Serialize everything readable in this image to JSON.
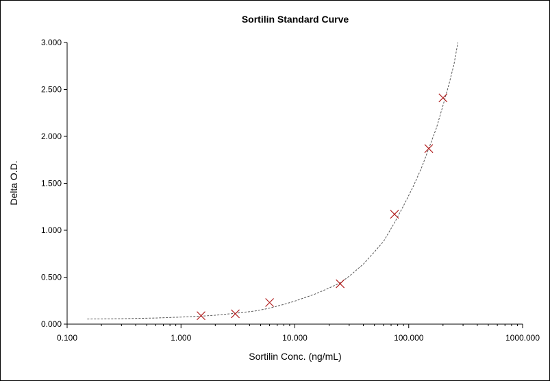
{
  "chart_data": {
    "type": "scatter",
    "title": "Sortilin Standard Curve",
    "xlabel": "Sortilin Conc. (ng/mL)",
    "ylabel": "Delta O.D.",
    "x_scale": "log",
    "xlim": [
      0.1,
      1000
    ],
    "ylim": [
      0,
      3.0
    ],
    "x_ticks": [
      0.1,
      1,
      10,
      100,
      1000
    ],
    "x_tick_labels": [
      "0.100",
      "1.000",
      "10.000",
      "100.000",
      "1000.000"
    ],
    "y_ticks": [
      0,
      0.5,
      1.0,
      1.5,
      2.0,
      2.5,
      3.0
    ],
    "y_tick_labels": [
      "0.000",
      "0.500",
      "1.000",
      "1.500",
      "2.000",
      "2.500",
      "3.000"
    ],
    "grid": false,
    "series": [
      {
        "type": "scatter",
        "marker": "x",
        "color": "#b22222",
        "x": [
          1.5,
          3.0,
          6.0,
          25.0,
          75.0,
          150.0,
          200.0
        ],
        "y": [
          0.09,
          0.11,
          0.23,
          0.43,
          1.17,
          1.87,
          2.41
        ]
      },
      {
        "type": "line",
        "style": "dashed",
        "color": "#555555",
        "x": [
          0.15,
          0.3,
          0.6,
          1.0,
          1.5,
          2.0,
          3.0,
          4.5,
          6.0,
          8.0,
          10.0,
          15.0,
          20.0,
          25.0,
          30.0,
          40.0,
          50.0,
          60.0,
          75.0,
          90.0,
          110.0,
          130.0,
          150.0,
          175.0,
          200.0,
          225.0,
          250.0,
          270.0
        ],
        "y": [
          0.055,
          0.058,
          0.065,
          0.075,
          0.085,
          0.095,
          0.115,
          0.14,
          0.17,
          0.21,
          0.245,
          0.32,
          0.385,
          0.44,
          0.51,
          0.64,
          0.77,
          0.88,
          1.08,
          1.26,
          1.47,
          1.67,
          1.87,
          2.09,
          2.33,
          2.55,
          2.77,
          3.0
        ]
      }
    ]
  }
}
